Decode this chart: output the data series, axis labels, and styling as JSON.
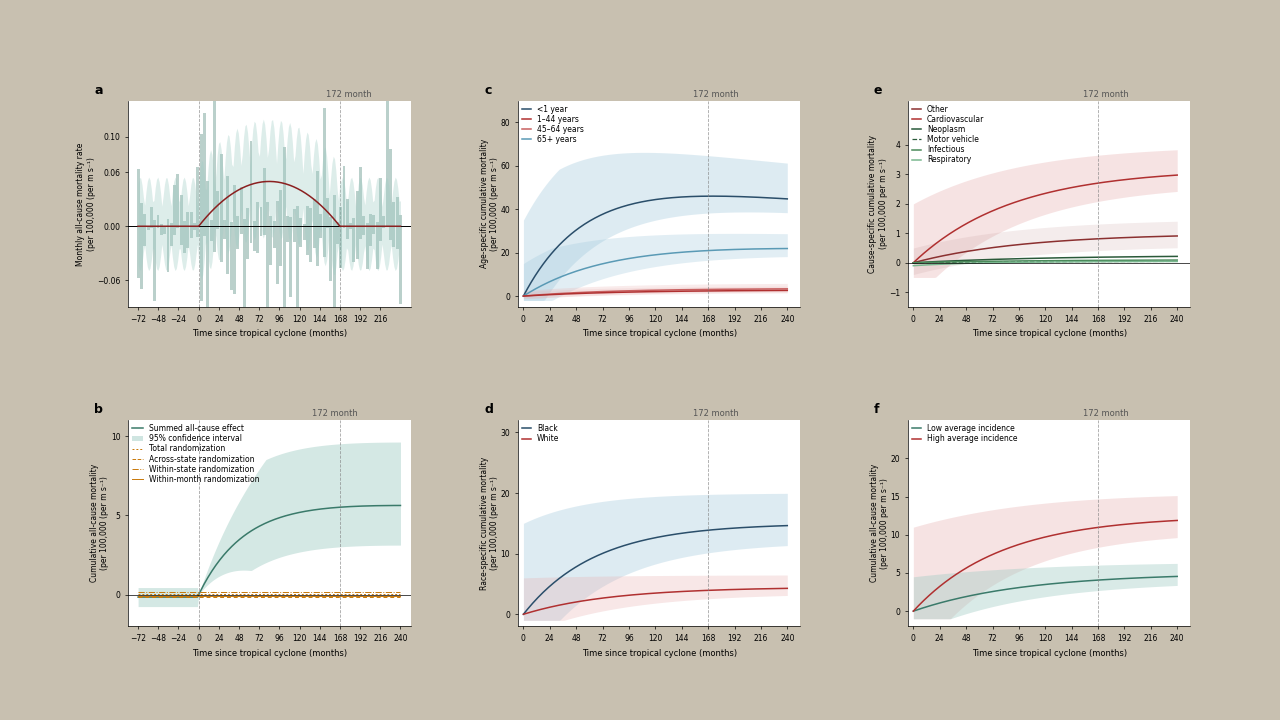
{
  "bg_color": "#c8c0b0",
  "panel_bg": "#ffffff",
  "teal_color": "#3a7a6a",
  "teal_fill": "#a0ccc4",
  "red_color": "#b03030",
  "red_fill": "#e8b0b0",
  "salmon_color": "#c86060",
  "orange_color": "#c8780a",
  "dark_navy": "#2a4e6a",
  "blue_mid": "#5a9ab5",
  "blue_fill": "#a0c8dc",
  "green_dark": "#2a5a3a",
  "green_mid": "#4a8a5a",
  "green_light": "#7ab890",
  "month_label": "172 month",
  "subplot_a": {
    "xlabel": "Time since tropical cyclone (months)",
    "ylabel": "Monthly all-cause mortality rate\n(per 100,000 (per m s⁻¹)",
    "xlim": [
      -84,
      252
    ],
    "ylim": [
      -0.09,
      0.14
    ],
    "xticks": [
      -72,
      -48,
      -24,
      0,
      24,
      48,
      72,
      96,
      120,
      144,
      168,
      192,
      216
    ],
    "yticks": [
      -0.06,
      0,
      0.06,
      0.1
    ]
  },
  "subplot_b": {
    "xlabel": "Time since tropical cyclone (months)",
    "ylabel": "Cumulative all-cause mortality\n(per 100,000 (per m s⁻¹)",
    "xlim": [
      -84,
      252
    ],
    "ylim": [
      -2,
      11
    ],
    "xticks": [
      -72,
      -48,
      -24,
      0,
      24,
      48,
      72,
      96,
      120,
      144,
      168,
      192,
      216,
      240
    ],
    "yticks": [
      0,
      5,
      10
    ]
  },
  "subplot_c": {
    "xlabel": "Time since tropical cyclone (months)",
    "ylabel": "Age-specific cumulative mortality\n(per 100,000 (per m s⁻¹)",
    "xlim": [
      -5,
      252
    ],
    "ylim": [
      -5,
      90
    ],
    "xticks": [
      0,
      24,
      48,
      72,
      96,
      120,
      144,
      168,
      192,
      216,
      240
    ],
    "yticks": [
      0,
      20,
      40,
      60,
      80
    ]
  },
  "subplot_d": {
    "xlabel": "Time since tropical cyclone (months)",
    "ylabel": "Race-specific cumulative mortality\n(per 100,000 (per m s⁻¹)",
    "xlim": [
      -5,
      252
    ],
    "ylim": [
      -2,
      32
    ],
    "xticks": [
      0,
      24,
      48,
      72,
      96,
      120,
      144,
      168,
      192,
      216,
      240
    ],
    "yticks": [
      0,
      10,
      20,
      30
    ]
  },
  "subplot_e": {
    "xlabel": "Time since tropical cyclone (months)",
    "ylabel": "Cause-specific cumulative mortality\n(per 100,000 per m s⁻¹)",
    "xlim": [
      -5,
      252
    ],
    "ylim": [
      -1.5,
      5.5
    ],
    "xticks": [
      0,
      24,
      48,
      72,
      96,
      120,
      144,
      168,
      192,
      216,
      240
    ],
    "yticks": [
      -1,
      0,
      1,
      2,
      3,
      4
    ]
  },
  "subplot_f": {
    "xlabel": "Time since tropical cyclone (months)",
    "ylabel": "Cumulative all-cause mortality\n(per 100,000 per m s⁻¹)",
    "xlim": [
      -5,
      252
    ],
    "ylim": [
      -2,
      25
    ],
    "xticks": [
      0,
      24,
      48,
      72,
      96,
      120,
      144,
      168,
      192,
      216,
      240
    ],
    "yticks": [
      0,
      5,
      10,
      15,
      20
    ]
  }
}
